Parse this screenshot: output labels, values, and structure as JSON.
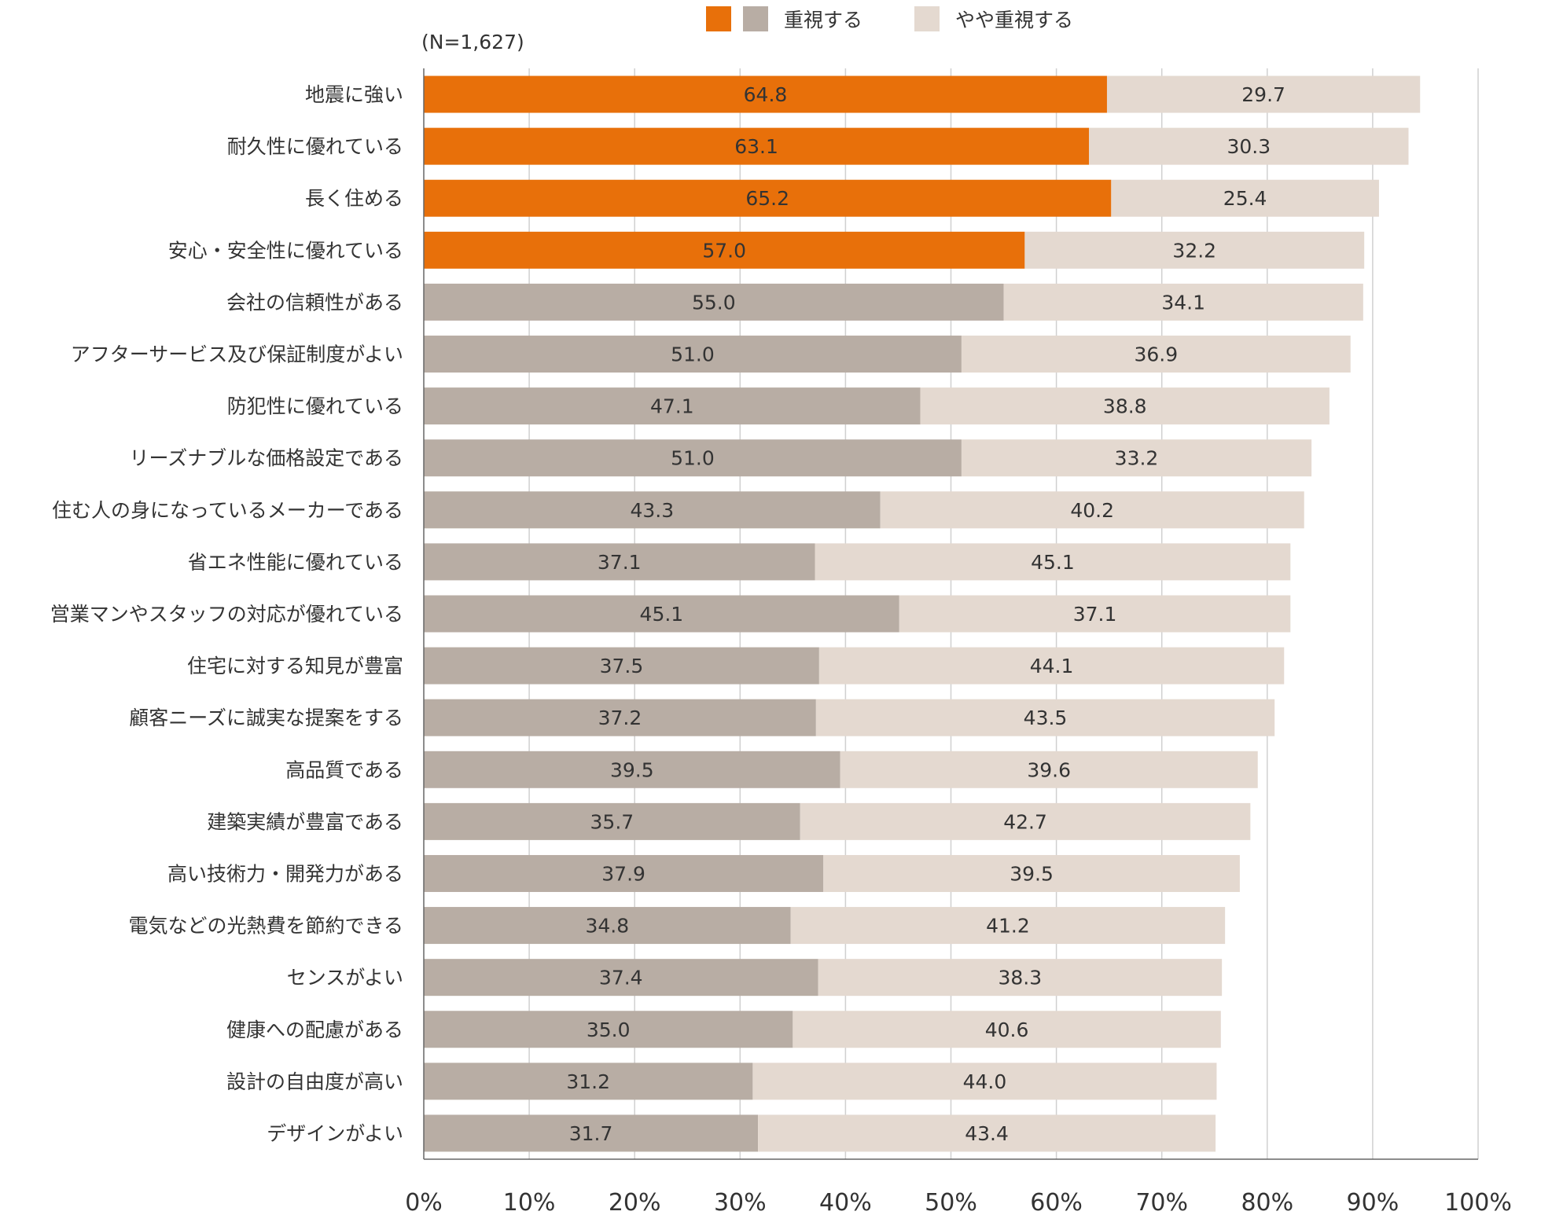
{
  "chart_data": {
    "type": "bar",
    "orientation": "horizontal",
    "stacked": true,
    "note": "(N=1,627)",
    "legend": {
      "position": "top",
      "items": [
        {
          "label": "重視する",
          "colors": [
            "#E8700A",
            "#B8ADA4"
          ]
        },
        {
          "label": "やや重視する",
          "colors": [
            "#E4D9D0"
          ]
        }
      ]
    },
    "categories": [
      "地震に強い",
      "耐久性に優れている",
      "長く住める",
      "安心・安全性に優れている",
      "会社の信頼性がある",
      "アフターサービス及び保証制度がよい",
      "防犯性に優れている",
      "リーズナブルな価格設定である",
      "住む人の身になっているメーカーである",
      "省エネ性能に優れている",
      "営業マンやスタッフの対応が優れている",
      "住宅に対する知見が豊富",
      "顧客ニーズに誠実な提案をする",
      "高品質である",
      "建築実績が豊富である",
      "高い技術力・開発力がある",
      "電気などの光熱費を節約できる",
      "センスがよい",
      "健康への配慮がある",
      "設計の自由度が高い",
      "デザインがよい"
    ],
    "series": [
      {
        "name": "重視する",
        "values": [
          64.8,
          63.1,
          65.2,
          57.0,
          55.0,
          51.0,
          47.1,
          51.0,
          43.3,
          37.1,
          45.1,
          37.5,
          37.2,
          39.5,
          35.7,
          37.9,
          34.8,
          37.4,
          35.0,
          31.2,
          31.7
        ],
        "labels": [
          "64.8",
          "63.1",
          "65.2",
          "57.0",
          "55.0",
          "51.0",
          "47.1",
          "51.0",
          "43.3",
          "37.1",
          "45.1",
          "37.5",
          "37.2",
          "39.5",
          "35.7",
          "37.9",
          "34.8",
          "37.4",
          "35.0",
          "31.2",
          "31.7"
        ]
      },
      {
        "name": "やや重視する",
        "values": [
          29.7,
          30.3,
          25.4,
          32.2,
          34.1,
          36.9,
          38.8,
          33.2,
          40.2,
          45.1,
          37.1,
          44.1,
          43.5,
          39.6,
          42.7,
          39.5,
          41.2,
          38.3,
          40.6,
          44.0,
          43.4
        ],
        "labels": [
          "29.7",
          "30.3",
          "25.4",
          "32.2",
          "34.1",
          "36.9",
          "38.8",
          "33.2",
          "40.2",
          "45.1",
          "37.1",
          "44.1",
          "43.5",
          "39.6",
          "42.7",
          "39.5",
          "41.2",
          "38.3",
          "40.6",
          "44.0",
          "43.4"
        ]
      }
    ],
    "highlighted_count": 4,
    "colors": {
      "highlight": "#E8700A",
      "primary": "#B8ADA4",
      "secondary": "#E4D9D0",
      "grid": "#D0D0D0",
      "axis": "#666666"
    },
    "xlim": [
      0,
      100
    ],
    "xticks": [
      "0%",
      "10%",
      "20%",
      "30%",
      "40%",
      "50%",
      "60%",
      "70%",
      "80%",
      "90%",
      "100%"
    ],
    "grid": true
  }
}
